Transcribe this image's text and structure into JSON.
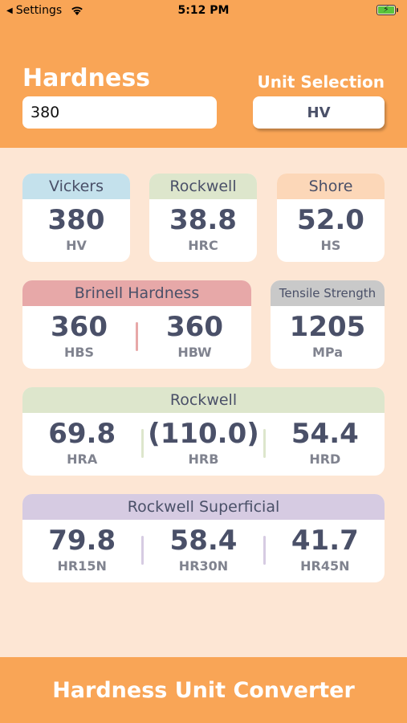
{
  "status": {
    "back_label": "Settings",
    "time": "5:12 PM"
  },
  "header": {
    "title": "Hardness",
    "unit_selection_label": "Unit Selection",
    "input_value": "380",
    "unit_value": "HV"
  },
  "cards": {
    "vickers": {
      "title": "Vickers",
      "value": "380",
      "unit": "HV",
      "color": "#c4e1ec"
    },
    "rockwell_c": {
      "title": "Rockwell",
      "value": "38.8",
      "unit": "HRC",
      "color": "#dde6cc"
    },
    "shore": {
      "title": "Shore",
      "value": "52.0",
      "unit": "HS",
      "color": "#fcd7b8"
    },
    "brinell": {
      "title": "Brinell Hardness",
      "color": "#e7a8a8",
      "items": [
        {
          "value": "360",
          "unit": "HBS"
        },
        {
          "value": "360",
          "unit": "HBW"
        }
      ]
    },
    "tensile": {
      "title": "Tensile Strength",
      "value": "1205",
      "unit": "MPa",
      "color": "#c9c9c9"
    },
    "rockwell": {
      "title": "Rockwell",
      "color": "#dde6cc",
      "items": [
        {
          "value": "69.8",
          "unit": "HRA"
        },
        {
          "value": "(110.0)",
          "unit": "HRB"
        },
        {
          "value": "54.4",
          "unit": "HRD"
        }
      ]
    },
    "superficial": {
      "title": "Rockwell Superficial",
      "color": "#d6cbe2",
      "items": [
        {
          "value": "79.8",
          "unit": "HR15N"
        },
        {
          "value": "58.4",
          "unit": "HR30N"
        },
        {
          "value": "41.7",
          "unit": "HR45N"
        }
      ]
    }
  },
  "footer": {
    "title": "Hardness Unit Converter"
  },
  "colors": {
    "accent": "#f9a556",
    "background": "#fde6d4",
    "text": "#4a5068"
  }
}
